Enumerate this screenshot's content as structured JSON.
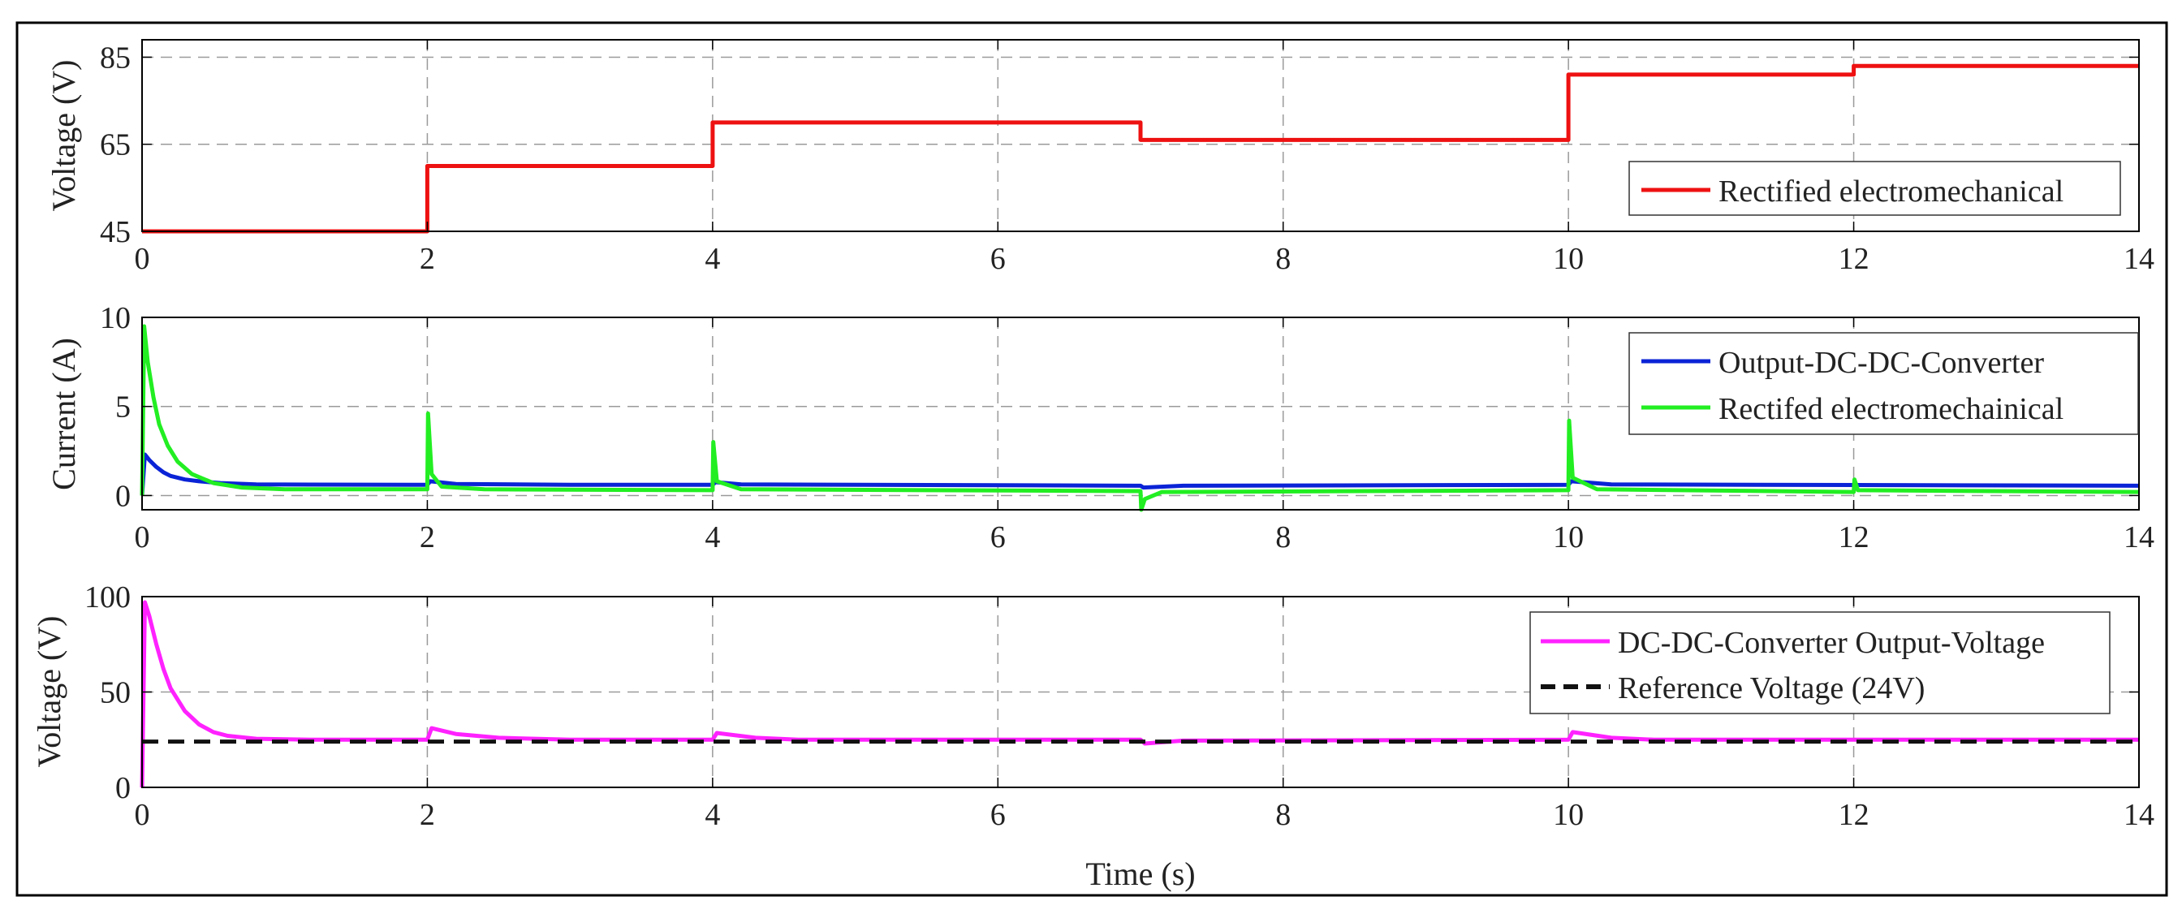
{
  "colors": {
    "frame": "#000000",
    "grid": "#9a9a9a",
    "red": "#ee1111",
    "blue": "#0a23d6",
    "green": "#22ee22",
    "magenta": "#ff22ff",
    "black": "#111111"
  },
  "chart_data": [
    {
      "type": "line",
      "ylabel": "Voltage (V)",
      "xlim": [
        0,
        14
      ],
      "ylim": [
        45,
        89
      ],
      "x_ticks": [
        0,
        2,
        4,
        6,
        8,
        10,
        12,
        14
      ],
      "x_tick_labels": [
        "0",
        "2",
        "4",
        "6",
        "8",
        "10",
        "12",
        "14"
      ],
      "y_ticks": [
        45,
        65,
        85
      ],
      "y_tick_labels": [
        "45",
        "65",
        "85"
      ],
      "grid": true,
      "legend_position": "bottom-right",
      "series": [
        {
          "name": "Rectified electromechanical",
          "color": "red",
          "style": "solid",
          "points": [
            [
              0,
              45
            ],
            [
              2,
              45
            ],
            [
              2,
              60
            ],
            [
              4,
              60
            ],
            [
              4,
              70
            ],
            [
              7,
              70
            ],
            [
              7,
              66
            ],
            [
              10,
              66
            ],
            [
              10,
              81
            ],
            [
              12,
              81
            ],
            [
              12,
              83
            ],
            [
              14,
              83
            ]
          ]
        }
      ]
    },
    {
      "type": "line",
      "ylabel": "Current (A)",
      "xlim": [
        0,
        14
      ],
      "ylim": [
        -0.8,
        10
      ],
      "x_ticks": [
        0,
        2,
        4,
        6,
        8,
        10,
        12,
        14
      ],
      "x_tick_labels": [
        "0",
        "2",
        "4",
        "6",
        "8",
        "10",
        "12",
        "14"
      ],
      "y_ticks": [
        0,
        5,
        10
      ],
      "y_tick_labels": [
        "0",
        "5",
        "10"
      ],
      "grid": true,
      "legend_position": "top-right",
      "series": [
        {
          "name": "Output-DC-DC-Converter",
          "color": "blue",
          "style": "solid",
          "points": [
            [
              0,
              0
            ],
            [
              0.02,
              2.3
            ],
            [
              0.05,
              2.0
            ],
            [
              0.1,
              1.6
            ],
            [
              0.15,
              1.3
            ],
            [
              0.2,
              1.1
            ],
            [
              0.3,
              0.9
            ],
            [
              0.4,
              0.8
            ],
            [
              0.55,
              0.7
            ],
            [
              0.8,
              0.62
            ],
            [
              2,
              0.6
            ],
            [
              2.02,
              0.8
            ],
            [
              2.2,
              0.65
            ],
            [
              3,
              0.6
            ],
            [
              4,
              0.6
            ],
            [
              4.02,
              0.75
            ],
            [
              4.2,
              0.62
            ],
            [
              6,
              0.58
            ],
            [
              7,
              0.55
            ],
            [
              7.02,
              0.45
            ],
            [
              7.3,
              0.55
            ],
            [
              10,
              0.6
            ],
            [
              10.02,
              0.8
            ],
            [
              10.3,
              0.62
            ],
            [
              14,
              0.55
            ]
          ]
        },
        {
          "name": "Rectifed electromechainical",
          "color": "green",
          "style": "solid",
          "points": [
            [
              0,
              0
            ],
            [
              0.015,
              9.5
            ],
            [
              0.04,
              7.5
            ],
            [
              0.08,
              5.5
            ],
            [
              0.12,
              4.0
            ],
            [
              0.18,
              2.8
            ],
            [
              0.25,
              1.9
            ],
            [
              0.35,
              1.2
            ],
            [
              0.5,
              0.7
            ],
            [
              0.7,
              0.45
            ],
            [
              1,
              0.35
            ],
            [
              2,
              0.35
            ],
            [
              2.005,
              4.6
            ],
            [
              2.03,
              1.2
            ],
            [
              2.1,
              0.5
            ],
            [
              2.4,
              0.35
            ],
            [
              4,
              0.3
            ],
            [
              4.005,
              3.0
            ],
            [
              4.03,
              0.8
            ],
            [
              4.2,
              0.35
            ],
            [
              7,
              0.25
            ],
            [
              7.005,
              -0.8
            ],
            [
              7.03,
              -0.2
            ],
            [
              7.15,
              0.2
            ],
            [
              10,
              0.3
            ],
            [
              10.005,
              4.2
            ],
            [
              10.03,
              1.0
            ],
            [
              10.2,
              0.35
            ],
            [
              12,
              0.2
            ],
            [
              12.005,
              0.9
            ],
            [
              12.03,
              0.3
            ],
            [
              14,
              0.2
            ]
          ]
        }
      ]
    },
    {
      "type": "line",
      "ylabel": "Voltage (V)",
      "xlabel": "Time (s)",
      "xlim": [
        0,
        14
      ],
      "ylim": [
        0,
        100
      ],
      "x_ticks": [
        0,
        2,
        4,
        6,
        8,
        10,
        12,
        14
      ],
      "x_tick_labels": [
        "0",
        "2",
        "4",
        "6",
        "8",
        "10",
        "12",
        "14"
      ],
      "y_ticks": [
        0,
        50,
        100
      ],
      "y_tick_labels": [
        "0",
        "50",
        "100"
      ],
      "grid": true,
      "legend_position": "top-right",
      "series": [
        {
          "name": "DC-DC-Converter Output-Voltage",
          "color": "magenta",
          "style": "solid",
          "points": [
            [
              0,
              0
            ],
            [
              0.02,
              97
            ],
            [
              0.05,
              90
            ],
            [
              0.1,
              75
            ],
            [
              0.15,
              62
            ],
            [
              0.2,
              52
            ],
            [
              0.3,
              40
            ],
            [
              0.4,
              33
            ],
            [
              0.5,
              29
            ],
            [
              0.6,
              27
            ],
            [
              0.8,
              25.5
            ],
            [
              1.2,
              25
            ],
            [
              2,
              25
            ],
            [
              2.03,
              31
            ],
            [
              2.2,
              28
            ],
            [
              2.5,
              26
            ],
            [
              3,
              25
            ],
            [
              4,
              25
            ],
            [
              4.03,
              28.5
            ],
            [
              4.3,
              26
            ],
            [
              4.6,
              25
            ],
            [
              7,
              25
            ],
            [
              7.03,
              23
            ],
            [
              7.3,
              24.5
            ],
            [
              10,
              25
            ],
            [
              10.03,
              29
            ],
            [
              10.3,
              26
            ],
            [
              10.6,
              25
            ],
            [
              12,
              25
            ],
            [
              14,
              25
            ]
          ]
        },
        {
          "name": "Reference Voltage (24V)",
          "color": "black",
          "style": "dashed",
          "points": [
            [
              0,
              24
            ],
            [
              14,
              24
            ]
          ]
        }
      ]
    }
  ]
}
